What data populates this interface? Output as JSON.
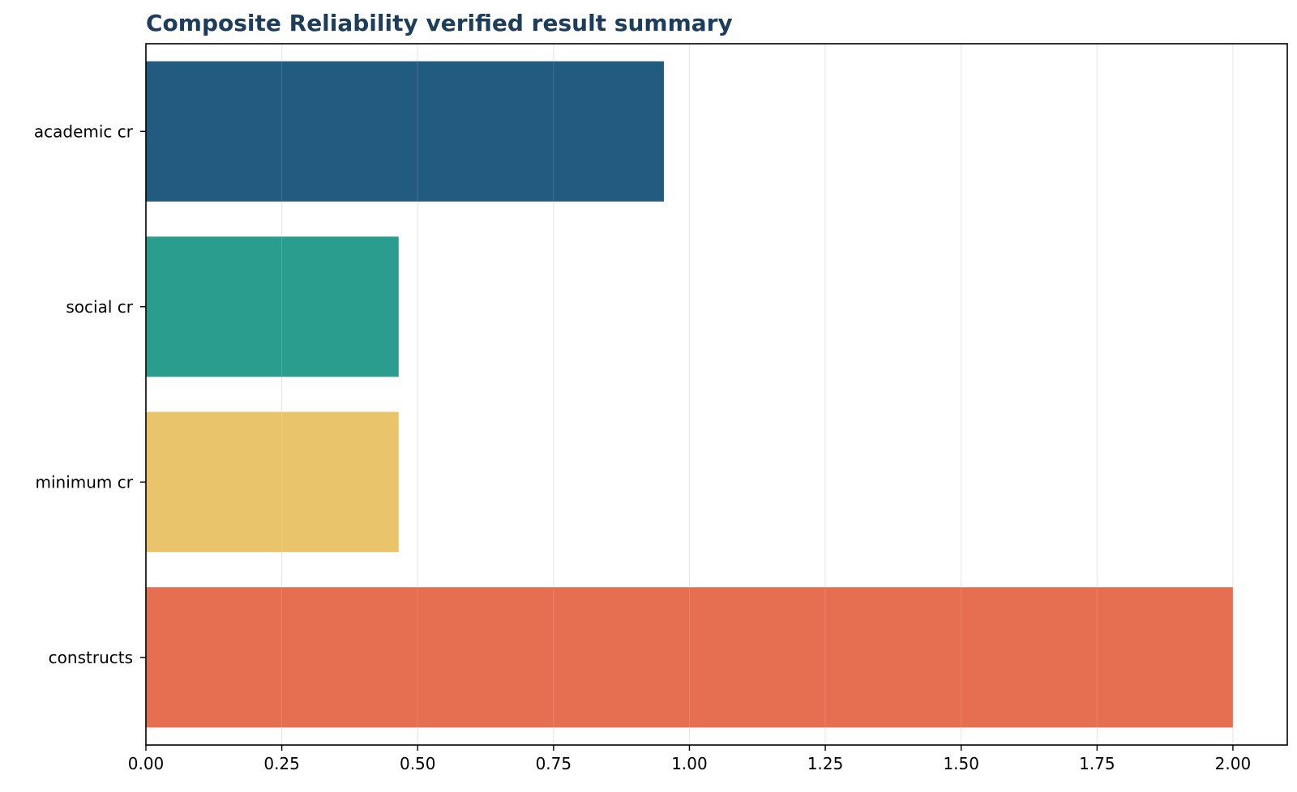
{
  "chart_data": {
    "type": "bar",
    "orientation": "horizontal",
    "title": "Composite Reliability verified result summary",
    "xlabel": "",
    "ylabel": "",
    "categories": [
      "academic cr",
      "social cr",
      "minimum cr",
      "constructs"
    ],
    "values": [
      0.953,
      0.465,
      0.465,
      2.0
    ],
    "bar_colors": [
      "#215b80",
      "#2a9d8f",
      "#e9c46a",
      "#e76f51"
    ],
    "xlim": [
      0,
      2.1
    ],
    "x_ticks": [
      0,
      0.25,
      0.5,
      0.75,
      1.0,
      1.25,
      1.5,
      1.75,
      2.0
    ],
    "x_tick_labels": [
      "0.00",
      "0.25",
      "0.50",
      "0.75",
      "1.00",
      "1.25",
      "1.50",
      "1.75",
      "2.00"
    ],
    "grid": "vertical",
    "legend": "none"
  },
  "colors": {
    "title": "#1d3d5c",
    "grid": "#e6e6e6",
    "axis": "#000000"
  }
}
